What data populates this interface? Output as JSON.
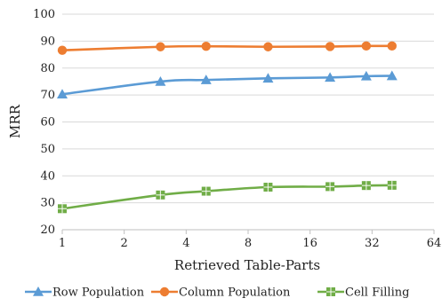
{
  "chart_data": {
    "type": "line",
    "xlabel": "Retrieved Table-Parts",
    "ylabel": "MRR",
    "x_scale": "log2",
    "xlim": [
      1,
      64
    ],
    "ylim": [
      20,
      100
    ],
    "x_ticks": [
      "1",
      "2",
      "4",
      "8",
      "16",
      "32",
      "64"
    ],
    "y_ticks": [
      "20",
      "30",
      "40",
      "50",
      "60",
      "70",
      "80",
      "90",
      "100"
    ],
    "x": [
      1,
      3,
      5,
      10,
      20,
      30,
      40
    ],
    "grid": "horizontal",
    "legend_position": "bottom",
    "series": [
      {
        "name": "Row Population",
        "color": "#5b9bd5",
        "marker": "triangle",
        "values": [
          70.3,
          75.0,
          75.6,
          76.2,
          76.5,
          77.0,
          77.1
        ]
      },
      {
        "name": "Column Population",
        "color": "#ed7d31",
        "marker": "circle",
        "values": [
          86.6,
          87.9,
          88.1,
          87.9,
          88.0,
          88.2,
          88.2
        ]
      },
      {
        "name": "Cell Filling",
        "color": "#70ad47",
        "marker": "square",
        "values": [
          27.8,
          32.9,
          34.3,
          35.8,
          36.0,
          36.4,
          36.5
        ]
      }
    ]
  }
}
